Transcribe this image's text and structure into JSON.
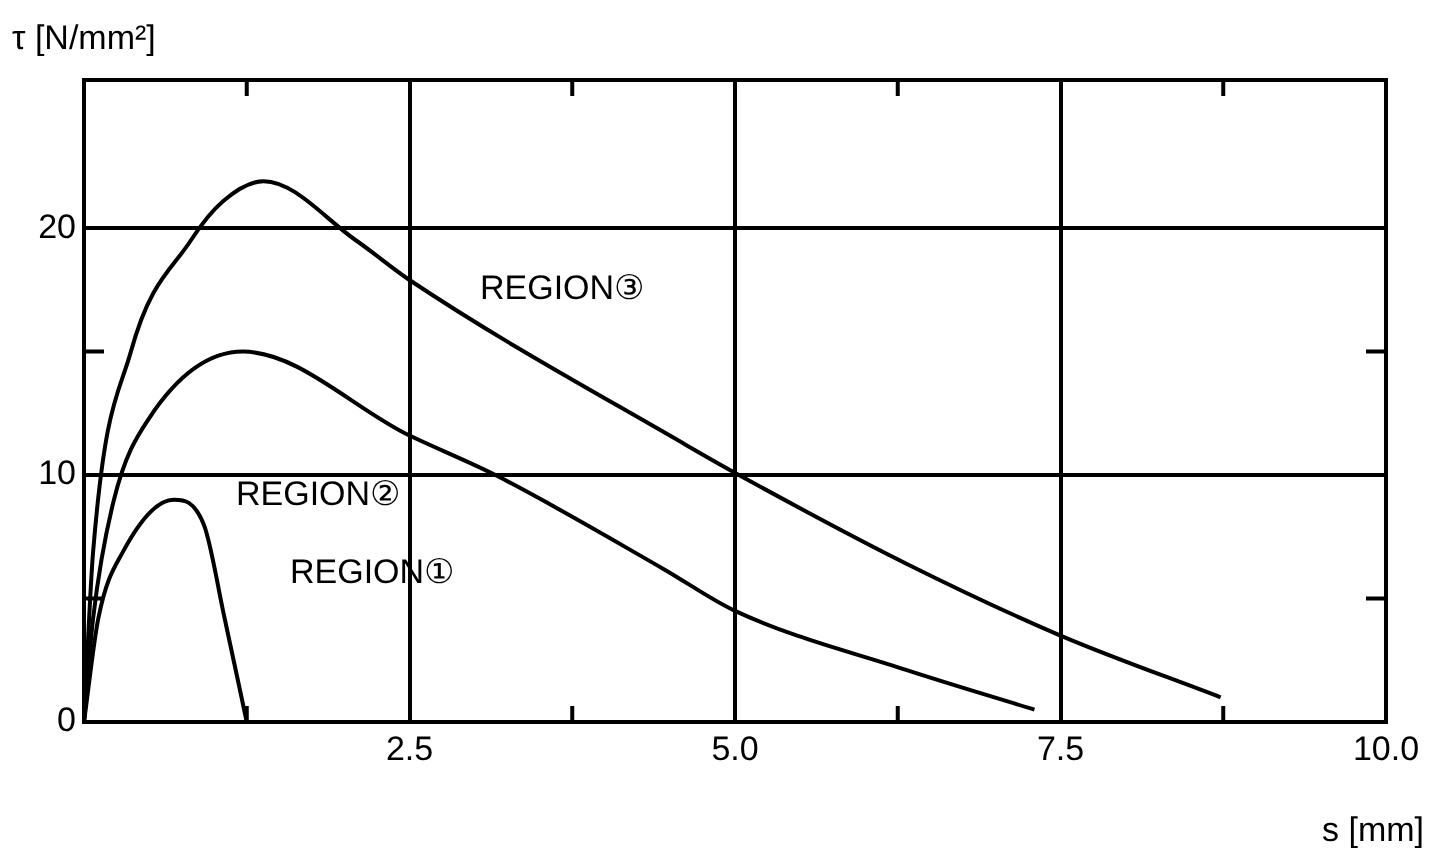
{
  "chart_data": {
    "type": "line",
    "xlabel": "s [mm]",
    "ylabel": "τ [N/mm²]",
    "xlim": [
      0,
      10
    ],
    "xticks": [
      {
        "value": 1.25,
        "label": null
      },
      {
        "value": 2.5,
        "label": "2.5"
      },
      {
        "value": 3.75,
        "label": null
      },
      {
        "value": 5,
        "label": "5.0"
      },
      {
        "value": 6.25,
        "label": null
      },
      {
        "value": 7.5,
        "label": "7.5"
      },
      {
        "value": 8.75,
        "label": null
      },
      {
        "value": 10,
        "label": "10.0"
      }
    ],
    "ylim": [
      0,
      26
    ],
    "yticks": [
      0,
      {
        "value": 5,
        "label": null
      },
      10,
      {
        "value": 15,
        "label": null
      },
      20
    ],
    "grid": true,
    "line_style": "solid",
    "series": [
      {
        "name": "REGION①",
        "color": "#000000",
        "x": [
          0,
          0.11,
          0.3,
          0.69,
          0.92,
          1.08,
          1.25
        ],
        "values": [
          0,
          4.2,
          6.9,
          9.0,
          8.0,
          4.2,
          0
        ]
      },
      {
        "name": "REGION②",
        "color": "#000000",
        "x": [
          0,
          0.07,
          0.23,
          0.5,
          1.22,
          2.5,
          3.16,
          4.45,
          5.0,
          6.32,
          7.3
        ],
        "values": [
          0,
          4.2,
          9.0,
          12.3,
          15.0,
          11.6,
          10,
          6.2,
          4.5,
          2.1,
          0.5
        ]
      },
      {
        "name": "REGION③",
        "color": "#000000",
        "x": [
          0,
          0.07,
          0.36,
          0.82,
          1.07,
          1.38,
          2.09,
          2.5,
          4.63,
          5.1,
          6.32,
          7.5,
          8.73
        ],
        "values": [
          0,
          6.9,
          15,
          19.5,
          21.1,
          21.9,
          19.5,
          17.9,
          11.2,
          9.8,
          6.4,
          3.5,
          1.0
        ]
      }
    ],
    "legend": false
  }
}
